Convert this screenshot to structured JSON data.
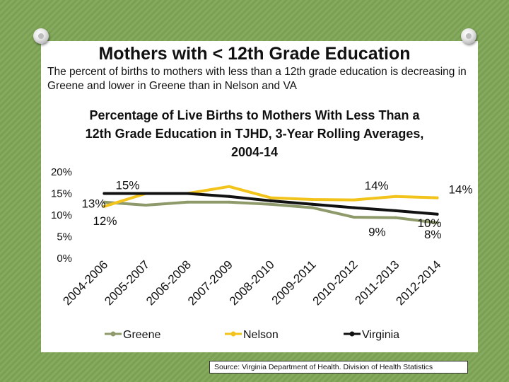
{
  "slide": {
    "title": "Mothers with < 12th Grade Education",
    "subtitle": "The percent of births to mothers with less than a 12th grade education is decreasing in Greene and lower in Greene than in Nelson and VA",
    "source": "Source: Virginia Department of Health. Division of Health Statistics"
  },
  "chart_data": {
    "type": "line",
    "title": "Percentage of Live Births to Mothers With Less Than a 12th Grade Education in TJHD, 3-Year Rolling Averages, 2004-14",
    "xlabel": "",
    "ylabel": "",
    "ylim": [
      0,
      20
    ],
    "yticks": [
      "0%",
      "5%",
      "10%",
      "15%",
      "20%"
    ],
    "categories": [
      "2004-2006",
      "2005-2007",
      "2006-2008",
      "2007-2009",
      "2008-2010",
      "2009-2011",
      "2010-2012",
      "2011-2013",
      "2012-2014"
    ],
    "series": [
      {
        "name": "Greene",
        "color": "#8f9a6a",
        "values": [
          13,
          12.3,
          13,
          13,
          12.5,
          11.7,
          9.5,
          9.4,
          8.2
        ]
      },
      {
        "name": "Nelson",
        "color": "#f2c31a",
        "values": [
          12,
          15,
          15,
          16.6,
          14,
          13.6,
          13.5,
          14.3,
          14
        ]
      },
      {
        "name": "Virginia",
        "color": "#111111",
        "values": [
          15,
          15,
          15,
          14.3,
          13.3,
          12.5,
          11.7,
          11,
          10.2
        ]
      }
    ],
    "data_labels": [
      {
        "text": "15%",
        "series": 2,
        "index": 0,
        "place": "above-right"
      },
      {
        "text": "13%",
        "series": 0,
        "index": 0,
        "place": "left"
      },
      {
        "text": "12%",
        "series": 1,
        "index": 0,
        "place": "below"
      },
      {
        "text": "14%",
        "series": 1,
        "index": 7,
        "place": "above-left"
      },
      {
        "text": "9%",
        "series": 0,
        "index": 7,
        "place": "below-left"
      },
      {
        "text": "14%",
        "series": 1,
        "index": 8,
        "place": "above-right"
      },
      {
        "text": "10%",
        "series": 2,
        "index": 8,
        "place": "right"
      },
      {
        "text": "8%",
        "series": 0,
        "index": 8,
        "place": "below-right"
      }
    ],
    "legend": {
      "position": "bottom"
    },
    "grid": false
  }
}
